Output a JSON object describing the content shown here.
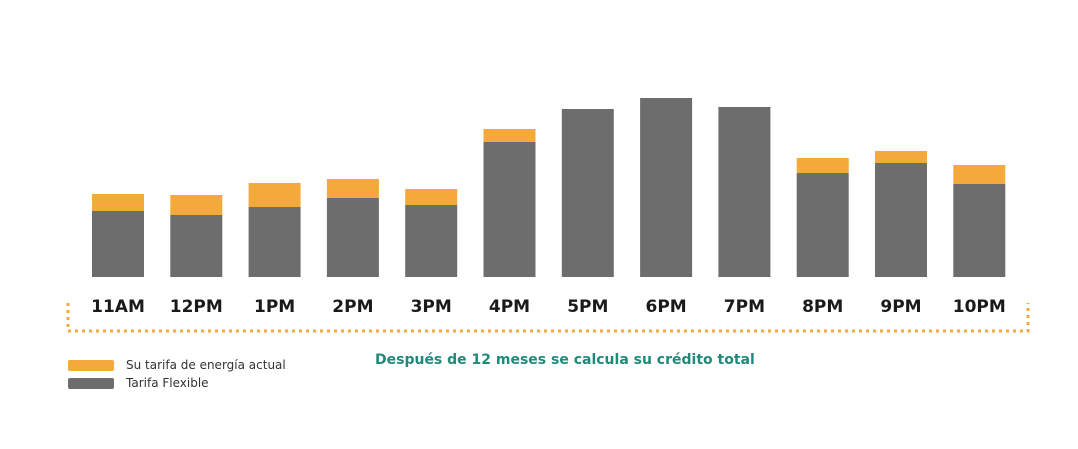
{
  "chart_data": {
    "type": "bar",
    "stacked": true,
    "categories": [
      "11AM",
      "12PM",
      "1PM",
      "2PM",
      "3PM",
      "4PM",
      "5PM",
      "6PM",
      "7PM",
      "8PM",
      "9PM",
      "10PM"
    ],
    "series": [
      {
        "name": "Tarifa Flexible",
        "color": "#6e6d6e",
        "values": [
          66,
          62,
          70,
          79,
          72,
          135,
          168,
          179,
          170,
          104,
          114,
          93
        ]
      },
      {
        "name": "Su tarifa de energía actual",
        "color": "#f4a93c",
        "values": [
          17,
          20,
          24,
          19,
          16,
          13,
          0,
          0,
          0,
          15,
          12,
          19
        ]
      }
    ],
    "ylim": [
      0,
      200
    ],
    "grid": false,
    "legend_position": "bottom-left",
    "annotation": "Después de 12 meses se calcula su crédito total"
  },
  "colors": {
    "bracket": "#f4a93c",
    "annotation": "#1f8a7a",
    "label": "#1a1a1a"
  }
}
